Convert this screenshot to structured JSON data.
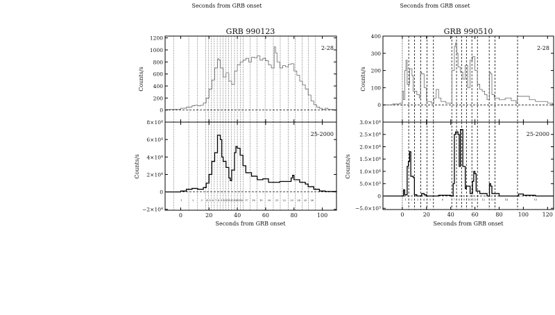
{
  "header_fragment": {
    "xlabels": [
      "Seconds from GRB onset",
      "Seconds from GRB onset"
    ]
  },
  "chart_data": [
    {
      "type": "line",
      "title": "GRB 990123",
      "xlabel": "Seconds from GRB onset",
      "ylabel": "Counts/s",
      "xlim": [
        -11,
        110
      ],
      "xticks": [
        0,
        20,
        40,
        60,
        80,
        100
      ],
      "xtick_labels": [
        "0",
        "20",
        "40",
        "60",
        "80",
        "100"
      ],
      "boundaries": [
        -5,
        5.7,
        11.9,
        17.6,
        19.6,
        21.7,
        23.7,
        25.8,
        27.8,
        29.8,
        31.9,
        33.9,
        35.9,
        38.0,
        40.0,
        42.1,
        44.1,
        49,
        53.9,
        59.6,
        65.4,
        70.3,
        76,
        80.9,
        85.8,
        90.2,
        95.2
      ],
      "boundary_style": "dotted",
      "interval_labels": [
        "1",
        "2",
        "3",
        "4",
        "5",
        "6",
        "7",
        "8",
        "9",
        "10",
        "11",
        "12",
        "13",
        "14",
        "15",
        "16",
        "17",
        "18",
        "19",
        "20",
        "21",
        "22",
        "23",
        "24",
        "25",
        "26"
      ],
      "panels": [
        {
          "band": "2-28",
          "ylim": [
            -200,
            1230
          ],
          "yticks": [
            0,
            200,
            400,
            600,
            800,
            1000,
            1200
          ],
          "ytick_labels": [
            "0",
            "200",
            "400",
            "600",
            "800",
            "1000",
            "1200"
          ],
          "series_style": "gray",
          "x": [
            -10,
            -6,
            -4,
            0,
            4,
            8,
            10,
            12,
            14,
            16,
            18,
            20,
            22,
            24,
            26,
            27,
            28,
            30,
            32,
            34,
            36,
            38,
            40,
            42,
            44,
            46,
            48,
            50,
            52,
            54,
            56,
            58,
            60,
            62,
            64,
            66,
            67,
            68,
            70,
            72,
            74,
            76,
            78,
            80,
            82,
            84,
            86,
            88,
            90,
            92,
            94,
            96,
            98,
            100,
            102,
            104,
            108
          ],
          "y": [
            10,
            10,
            15,
            30,
            50,
            70,
            80,
            70,
            80,
            120,
            200,
            350,
            500,
            700,
            850,
            830,
            700,
            550,
            620,
            480,
            430,
            650,
            750,
            800,
            830,
            860,
            800,
            880,
            870,
            900,
            830,
            860,
            820,
            750,
            700,
            1050,
            950,
            800,
            700,
            740,
            720,
            760,
            770,
            650,
            580,
            480,
            420,
            350,
            250,
            150,
            90,
            50,
            30,
            10,
            30,
            10,
            5
          ]
        },
        {
          "band": "25-2000",
          "ylim": [
            -21000,
            80000
          ],
          "yticks": [
            -20000,
            0,
            20000,
            40000,
            60000,
            80000
          ],
          "ytick_labels": [
            "−2×10⁴",
            "0",
            "2×10⁴",
            "4×10⁴",
            "6×10⁴",
            "8×10⁴"
          ],
          "series_style": "black",
          "x": [
            -10,
            0,
            4,
            8,
            12,
            16,
            18,
            20,
            22,
            24,
            26,
            27,
            28,
            29,
            30,
            32,
            34,
            35,
            36,
            38,
            39,
            40,
            42,
            44,
            46,
            50,
            54,
            58,
            62,
            66,
            70,
            74,
            78,
            79,
            80,
            84,
            88,
            90,
            94,
            98,
            102,
            110
          ],
          "y": [
            0,
            1000,
            3000,
            4000,
            3000,
            5000,
            10000,
            20000,
            35000,
            45000,
            65000,
            65000,
            60000,
            40000,
            35000,
            28000,
            16000,
            13000,
            25000,
            45000,
            52000,
            50000,
            42000,
            30000,
            22000,
            18000,
            14000,
            15000,
            11000,
            11000,
            12000,
            12000,
            16000,
            19000,
            14000,
            11000,
            9000,
            6000,
            3000,
            1000,
            500,
            0
          ]
        }
      ]
    },
    {
      "type": "line",
      "title": "GRB 990510",
      "xlabel": "Seconds from GRB onset",
      "ylabel": "Counts/s",
      "xlim": [
        -16,
        125
      ],
      "xticks": [
        0,
        20,
        40,
        60,
        80,
        100,
        120
      ],
      "xtick_labels": [
        "0",
        "20",
        "40",
        "60",
        "80",
        "100",
        "120"
      ],
      "boundaries": [
        0,
        5.3,
        10.1,
        15.2,
        20.4,
        25.7,
        40.9,
        44.8,
        49,
        53,
        57.5,
        62.1,
        71.8,
        76.6,
        95.2
      ],
      "boundary_style": "dashed",
      "interval_labels": [
        "1",
        "2",
        "3",
        "4",
        "5",
        "6",
        "7",
        "8",
        "9",
        "10",
        "11",
        "12",
        "13",
        "14",
        "15"
      ],
      "panels": [
        {
          "band": "2-28",
          "ylim": [
            -100,
            400
          ],
          "yticks": [
            0,
            100,
            200,
            300,
            400
          ],
          "ytick_labels": [
            "0",
            "100",
            "200",
            "300",
            "400"
          ],
          "series_style": "gray",
          "x": [
            -15,
            -8,
            -2,
            0,
            1,
            2,
            3,
            4,
            6,
            8,
            9,
            12,
            14,
            15,
            16,
            18,
            20,
            24,
            26,
            28,
            30,
            32,
            36,
            40,
            41,
            43,
            44,
            45,
            46,
            48,
            50,
            52,
            54,
            56,
            58,
            60,
            62,
            64,
            66,
            68,
            70,
            72,
            73,
            74,
            76,
            80,
            85,
            90,
            94,
            95,
            100,
            105,
            110,
            115,
            120,
            124
          ],
          "y": [
            0,
            5,
            10,
            80,
            30,
            200,
            260,
            120,
            210,
            170,
            80,
            60,
            40,
            190,
            180,
            100,
            20,
            10,
            40,
            90,
            40,
            20,
            10,
            10,
            200,
            340,
            360,
            300,
            220,
            190,
            150,
            230,
            100,
            260,
            280,
            200,
            120,
            90,
            80,
            60,
            30,
            190,
            180,
            60,
            40,
            30,
            40,
            25,
            10,
            50,
            50,
            30,
            20,
            20,
            10,
            5
          ]
        },
        {
          "band": "25-2000",
          "ylim": [
            -5500,
            30000
          ],
          "yticks": [
            -5000,
            0,
            5000,
            10000,
            15000,
            20000,
            25000,
            30000
          ],
          "ytick_labels": [
            "−5.0×10³",
            "0",
            "5.0×10³",
            "1.0×10⁴",
            "1.5×10⁴",
            "2.0×10⁴",
            "2.5×10⁴",
            "3.0×10⁴"
          ],
          "series_style": "black",
          "x": [
            -15,
            0,
            1,
            2,
            4,
            5,
            6,
            7,
            9,
            10,
            12,
            16,
            18,
            20,
            30,
            40,
            42,
            43,
            44,
            46,
            47,
            48,
            49,
            50,
            52,
            53,
            55,
            56,
            58,
            59,
            60,
            61,
            64,
            70,
            72,
            73,
            74,
            80,
            90,
            96,
            100,
            110,
            124
          ],
          "y": [
            0,
            0,
            2500,
            500,
            12000,
            14000,
            18000,
            8000,
            7500,
            500,
            0,
            1000,
            500,
            0,
            300,
            0,
            5000,
            25000,
            26000,
            25000,
            12000,
            27000,
            27000,
            12000,
            3000,
            4000,
            4000,
            1000,
            6000,
            10000,
            9000,
            2000,
            1000,
            0,
            5000,
            4000,
            1000,
            0,
            0,
            800,
            300,
            0,
            0
          ]
        }
      ]
    }
  ]
}
